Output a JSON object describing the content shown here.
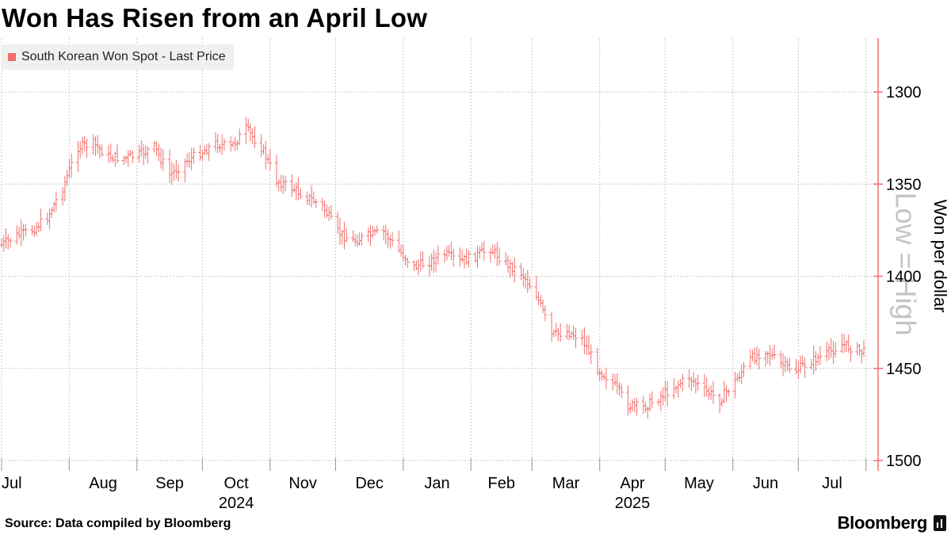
{
  "title": "Won Has Risen from an April Low",
  "legend": {
    "label": "South Korean Won Spot - Last Price",
    "color": "#f06f6c"
  },
  "source": "Source: Data compiled by Bloomberg",
  "brand": "Bloomberg",
  "colors": {
    "series": "#f06f6c",
    "grid": "#c8c8c8",
    "axis": "#f06f6c",
    "watermark": "#c4c4c4"
  },
  "chart_data": {
    "type": "bar",
    "subtype": "ohlc",
    "title": "Won Has Risen from an April Low",
    "ylabel": "Won per dollar",
    "y_inverted": true,
    "ylim": [
      1300,
      1500
    ],
    "y_ticks": [
      1300,
      1350,
      1400,
      1450,
      1500
    ],
    "y_axis_side": "right",
    "watermark": "Low = High",
    "grid": true,
    "legend_position": "top-left",
    "x_tick_labels": [
      "Jul",
      "Aug",
      "Sep",
      "Oct",
      "Nov",
      "Dec",
      "Jan",
      "Feb",
      "Mar",
      "Apr",
      "May",
      "Jun",
      "Jul"
    ],
    "x_year_labels": [
      "2024",
      "2025"
    ],
    "series": [
      {
        "name": "South Korean Won Spot - Last Price",
        "x_range": [
          "2024-07-01",
          "2025-07-31"
        ],
        "close_weekly": [
          1383,
          1378,
          1375,
          1368,
          1352,
          1330,
          1328,
          1335,
          1336,
          1334,
          1330,
          1345,
          1338,
          1333,
          1328,
          1330,
          1320,
          1330,
          1348,
          1352,
          1357,
          1362,
          1376,
          1381,
          1378,
          1376,
          1386,
          1395,
          1392,
          1388,
          1392,
          1389,
          1385,
          1393,
          1398,
          1410,
          1432,
          1430,
          1434,
          1450,
          1458,
          1470,
          1471,
          1466,
          1460,
          1455,
          1462,
          1467,
          1457,
          1445,
          1440,
          1448,
          1451,
          1446,
          1442,
          1437,
          1440,
          1443,
          1432,
          1438,
          1447,
          1456,
          1452,
          1447,
          1450,
          1460,
          1468,
          1467,
          1466,
          1472,
          1475,
          1460,
          1440,
          1412,
          1418,
          1432,
          1440,
          1395,
          1392,
          1395,
          1405,
          1390,
          1385,
          1381,
          1363,
          1367,
          1368,
          1358,
          1355,
          1354,
          1362,
          1366,
          1372,
          1356,
          1353,
          1352,
          1358,
          1365,
          1370,
          1375,
          1382,
          1389,
          1393,
          1385,
          1376,
          1382,
          1390
        ]
      }
    ]
  }
}
